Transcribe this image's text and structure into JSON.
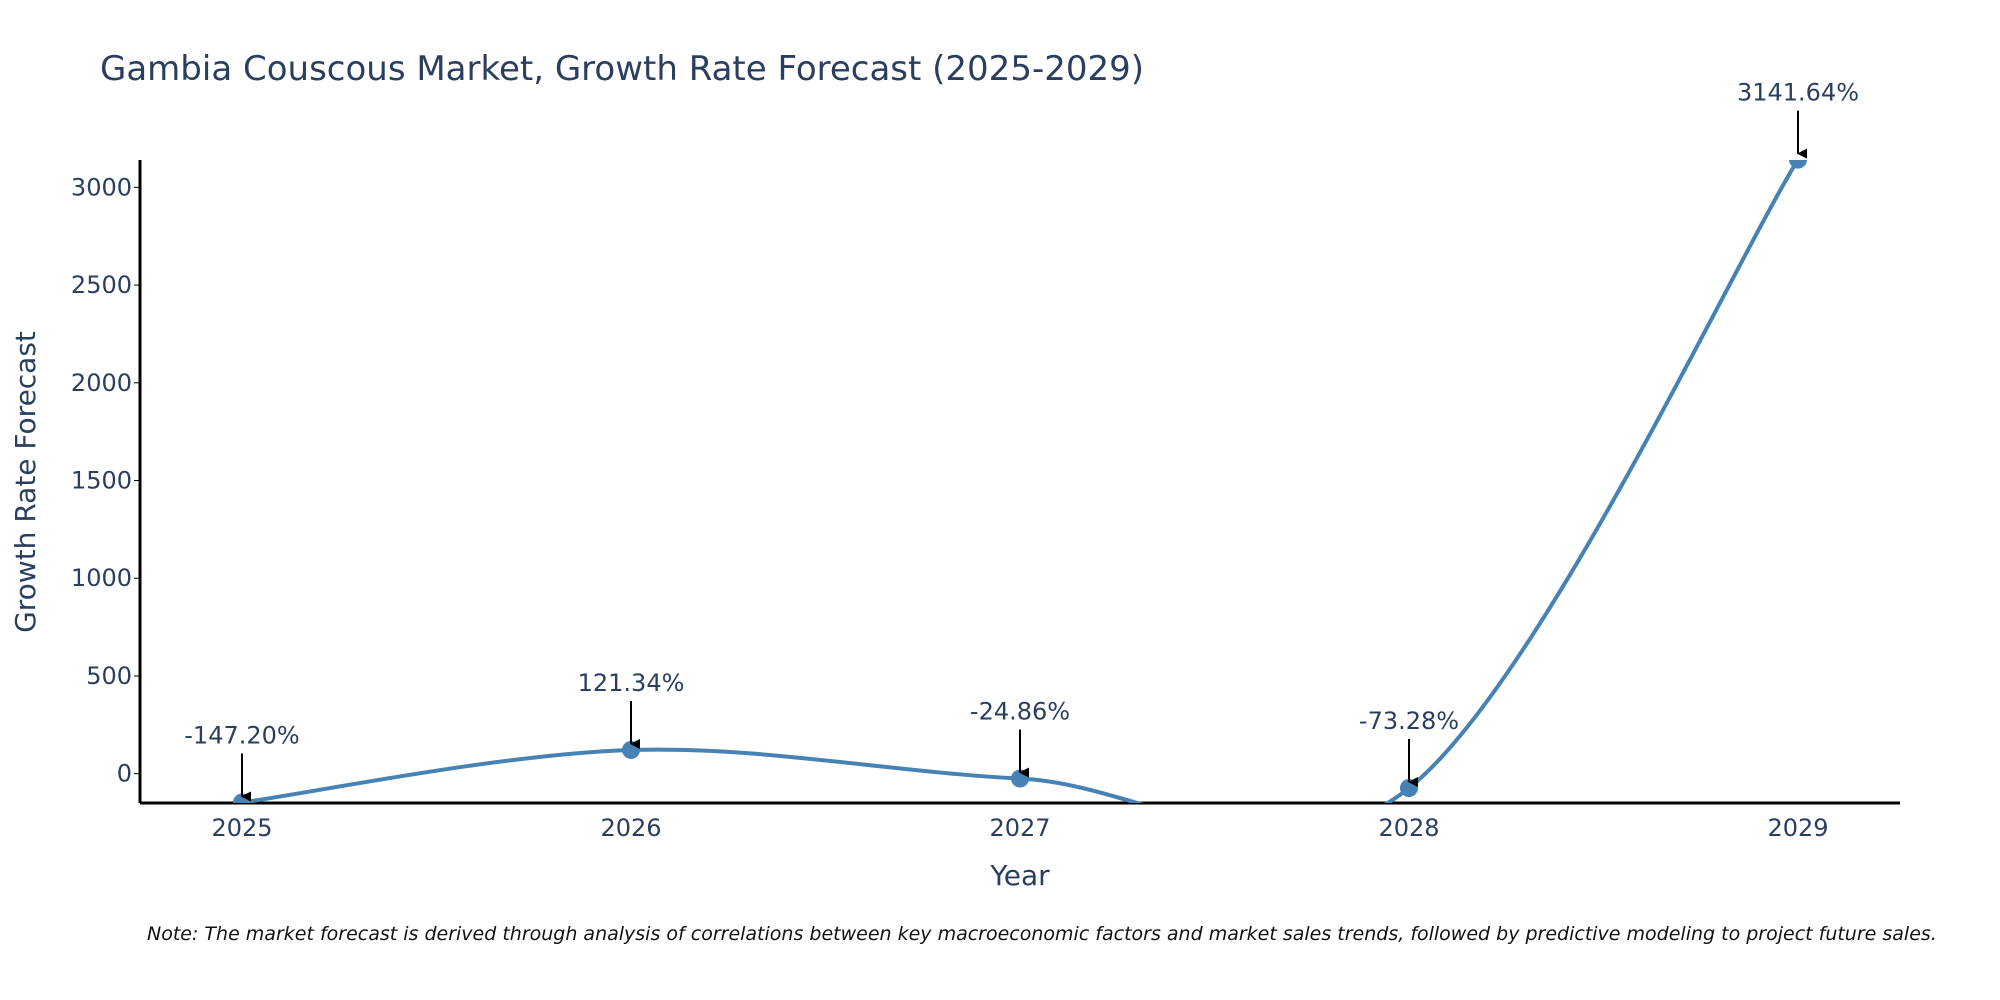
{
  "chart_data": {
    "type": "line",
    "title": "Gambia Couscous Market, Growth Rate Forecast (2025-2029)",
    "xlabel": "Year",
    "ylabel": "Growth Rate Forecast",
    "categories": [
      "2025",
      "2026",
      "2027",
      "2028",
      "2029"
    ],
    "series": [
      {
        "name": "Growth Rate Forecast",
        "values": [
          -147.2,
          121.34,
          -24.86,
          -73.28,
          3141.64
        ],
        "labels": [
          "-147.20%",
          "121.34%",
          "-24.86%",
          "-73.28%",
          "3141.64%"
        ]
      }
    ],
    "ylim": [
      -150,
      3140
    ],
    "yticks": [
      0,
      500,
      1000,
      1500,
      2000,
      2500,
      3000
    ],
    "ytick_labels": [
      "0",
      "500",
      "1000",
      "1500",
      "2000",
      "2500",
      "3000"
    ],
    "grid": false,
    "line_color": "#4682B4",
    "note": "Note: The market forecast is derived through analysis of correlations between key macroeconomic factors and market sales trends, followed by predictive modeling to project future sales."
  }
}
